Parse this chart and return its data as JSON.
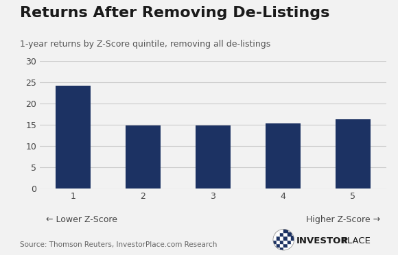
{
  "title": "Returns After Removing De-Listings",
  "subtitle": "1-year returns by Z-Score quintile, removing all de-listings",
  "categories": [
    1,
    2,
    3,
    4,
    5
  ],
  "values": [
    24.2,
    14.9,
    14.9,
    15.3,
    16.3
  ],
  "bar_color": "#1c3263",
  "ylim": [
    0,
    30
  ],
  "yticks": [
    0,
    5,
    10,
    15,
    20,
    25,
    30
  ],
  "xlabel_left": "← Lower Z-Score",
  "xlabel_right": "Higher Z-Score →",
  "source_text": "Source: Thomson Reuters, InvestorPlace.com Research",
  "background_color": "#f2f2f2",
  "grid_color": "#cccccc",
  "title_fontsize": 16,
  "subtitle_fontsize": 9,
  "tick_fontsize": 9,
  "source_fontsize": 7.5,
  "logo_bold_fontsize": 9.5,
  "logo_reg_fontsize": 9.5,
  "bar_width": 0.5
}
